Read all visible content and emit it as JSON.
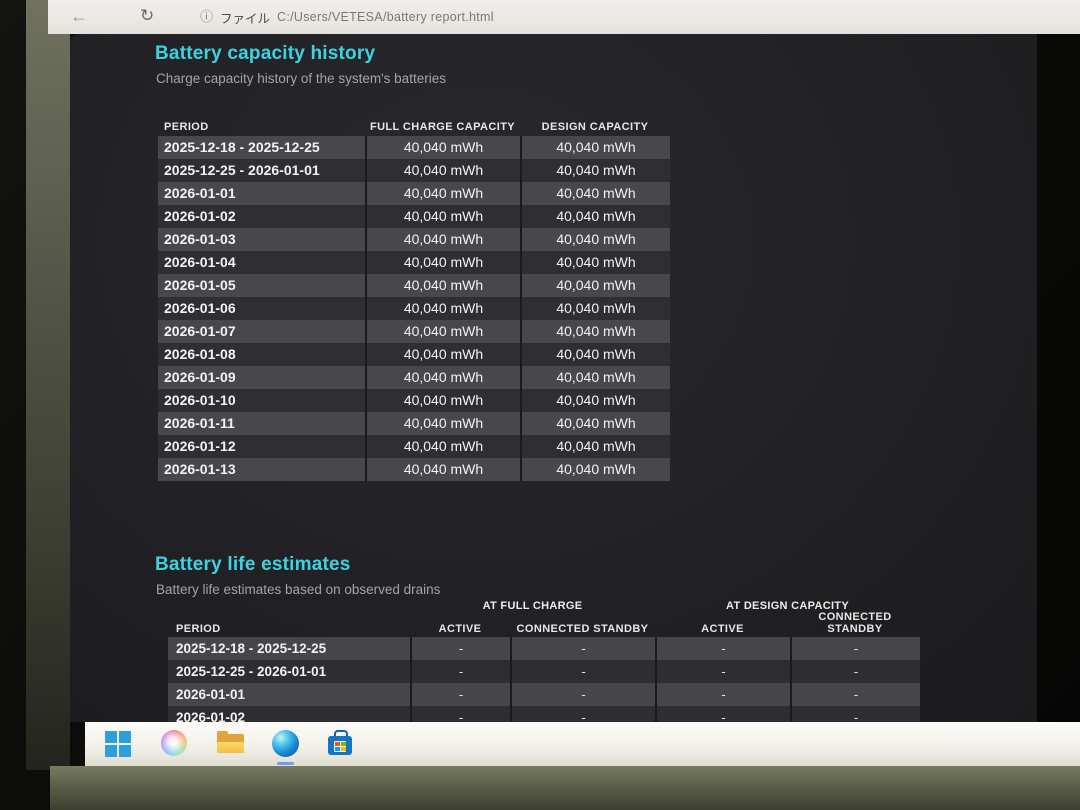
{
  "browser": {
    "icons": {
      "back": "←",
      "reload": "↻",
      "file_badge": "ⓘ"
    },
    "file_scheme_label": "ファイル",
    "url": "C:/Users/VETESA/battery report.html"
  },
  "capacity_history": {
    "title": "Battery capacity history",
    "subtitle": "Charge capacity history of the system's batteries",
    "columns": [
      "PERIOD",
      "FULL CHARGE CAPACITY",
      "DESIGN CAPACITY"
    ],
    "rows": [
      {
        "period": "2025-12-18 - 2025-12-25",
        "full_charge": "40,040 mWh",
        "design": "40,040 mWh"
      },
      {
        "period": "2025-12-25 - 2026-01-01",
        "full_charge": "40,040 mWh",
        "design": "40,040 mWh"
      },
      {
        "period": "2026-01-01",
        "full_charge": "40,040 mWh",
        "design": "40,040 mWh"
      },
      {
        "period": "2026-01-02",
        "full_charge": "40,040 mWh",
        "design": "40,040 mWh"
      },
      {
        "period": "2026-01-03",
        "full_charge": "40,040 mWh",
        "design": "40,040 mWh"
      },
      {
        "period": "2026-01-04",
        "full_charge": "40,040 mWh",
        "design": "40,040 mWh"
      },
      {
        "period": "2026-01-05",
        "full_charge": "40,040 mWh",
        "design": "40,040 mWh"
      },
      {
        "period": "2026-01-06",
        "full_charge": "40,040 mWh",
        "design": "40,040 mWh"
      },
      {
        "period": "2026-01-07",
        "full_charge": "40,040 mWh",
        "design": "40,040 mWh"
      },
      {
        "period": "2026-01-08",
        "full_charge": "40,040 mWh",
        "design": "40,040 mWh"
      },
      {
        "period": "2026-01-09",
        "full_charge": "40,040 mWh",
        "design": "40,040 mWh"
      },
      {
        "period": "2026-01-10",
        "full_charge": "40,040 mWh",
        "design": "40,040 mWh"
      },
      {
        "period": "2026-01-11",
        "full_charge": "40,040 mWh",
        "design": "40,040 mWh"
      },
      {
        "period": "2026-01-12",
        "full_charge": "40,040 mWh",
        "design": "40,040 mWh"
      },
      {
        "period": "2026-01-13",
        "full_charge": "40,040 mWh",
        "design": "40,040 mWh"
      }
    ]
  },
  "life_estimates": {
    "title": "Battery life estimates",
    "subtitle": "Battery life estimates based on observed drains",
    "group_headers": [
      "AT FULL CHARGE",
      "AT DESIGN CAPACITY"
    ],
    "columns": [
      "PERIOD",
      "ACTIVE",
      "CONNECTED STANDBY",
      "ACTIVE",
      "CONNECTED STANDBY"
    ],
    "rows": [
      {
        "period": "2025-12-18 - 2025-12-25",
        "values": [
          "-",
          "-",
          "-",
          "-"
        ]
      },
      {
        "period": "2025-12-25 - 2026-01-01",
        "values": [
          "-",
          "-",
          "-",
          "-"
        ]
      },
      {
        "period": "2026-01-01",
        "values": [
          "-",
          "-",
          "-",
          "-"
        ]
      },
      {
        "period": "2026-01-02",
        "values": [
          "-",
          "-",
          "-",
          "-"
        ]
      }
    ]
  },
  "taskbar": {
    "buttons": [
      "start",
      "copilot",
      "file-explorer",
      "edge",
      "store"
    ],
    "active_app": "edge"
  },
  "colors": {
    "heading_accent": "#3dd2e2",
    "row_light": "#48484c",
    "row_dark": "#2f2f33",
    "page_background": "#232327",
    "chrome_background": "#e9e7e2",
    "start_blue": "#2ba0da"
  }
}
